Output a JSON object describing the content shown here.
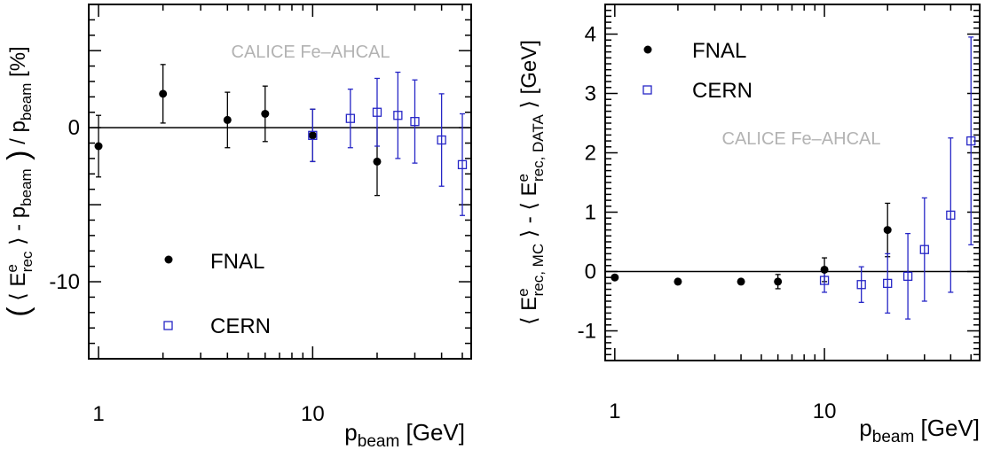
{
  "colors": {
    "fnal": "#000000",
    "cern": "#2626c6",
    "watermark": "#b3b3b3",
    "axis": "#000000"
  },
  "chart_data": [
    {
      "type": "scatter",
      "xscale": "log",
      "xlim": [
        0.9,
        55
      ],
      "ylim": [
        -15,
        8
      ],
      "ylabel": "( ⟨ E_rec^e ⟩ - p_beam ) / p_beam [%]",
      "xlabel": "p_beam [GeV]",
      "xticks": [
        {
          "v": 1,
          "label": "1"
        },
        {
          "v": 10,
          "label": "10"
        }
      ],
      "yticks": [
        {
          "v": 0,
          "label": "0"
        },
        {
          "v": -10,
          "label": "-10"
        }
      ],
      "reference_line": 0,
      "watermark": "CALICE Fe–AHCAL",
      "legend": [
        {
          "label": "FNAL",
          "marker": "filled-circle"
        },
        {
          "label": "CERN",
          "marker": "open-square"
        }
      ],
      "series": [
        {
          "name": "FNAL",
          "points": [
            {
              "x": 1,
              "y": -1.2,
              "err": 2.0
            },
            {
              "x": 2,
              "y": 2.2,
              "err": 1.9
            },
            {
              "x": 4,
              "y": 0.5,
              "err": 1.8
            },
            {
              "x": 6,
              "y": 0.9,
              "err": 1.8
            },
            {
              "x": 10,
              "y": -0.5,
              "err": 1.7
            },
            {
              "x": 20,
              "y": -2.2,
              "err": 2.2
            }
          ]
        },
        {
          "name": "CERN",
          "points": [
            {
              "x": 10,
              "y": -0.5,
              "err": 1.7
            },
            {
              "x": 15,
              "y": 0.6,
              "err": 1.9
            },
            {
              "x": 20,
              "y": 1.0,
              "err": 2.2
            },
            {
              "x": 25,
              "y": 0.8,
              "err": 2.8
            },
            {
              "x": 30,
              "y": 0.4,
              "err": 2.7
            },
            {
              "x": 40,
              "y": -0.8,
              "err": 3.0
            },
            {
              "x": 50,
              "y": -2.4,
              "err": 3.3
            }
          ]
        }
      ]
    },
    {
      "type": "scatter",
      "xscale": "log",
      "xlim": [
        0.9,
        55
      ],
      "ylim": [
        -1.5,
        4.5
      ],
      "ylabel": "⟨ E_rec,MC^e ⟩ - ⟨ E_rec,DATA^e ⟩ [GeV]",
      "xlabel": "p_beam [GeV]",
      "xticks": [
        {
          "v": 1,
          "label": "1"
        },
        {
          "v": 10,
          "label": "10"
        }
      ],
      "yticks": [
        {
          "v": -1,
          "label": "-1"
        },
        {
          "v": 0,
          "label": "0"
        },
        {
          "v": 1,
          "label": "1"
        },
        {
          "v": 2,
          "label": "2"
        },
        {
          "v": 3,
          "label": "3"
        },
        {
          "v": 4,
          "label": "4"
        }
      ],
      "reference_line": 0,
      "watermark": "CALICE Fe–AHCAL",
      "legend": [
        {
          "label": "FNAL",
          "marker": "filled-circle"
        },
        {
          "label": "CERN",
          "marker": "open-square"
        }
      ],
      "series": [
        {
          "name": "FNAL",
          "points": [
            {
              "x": 1,
              "y": -0.1,
              "err": 0.03
            },
            {
              "x": 2,
              "y": -0.17,
              "err": 0.03
            },
            {
              "x": 4,
              "y": -0.17,
              "err": 0.03
            },
            {
              "x": 6,
              "y": -0.17,
              "err": 0.12
            },
            {
              "x": 10,
              "y": 0.03,
              "err": 0.2
            },
            {
              "x": 20,
              "y": 0.7,
              "err": 0.45
            }
          ]
        },
        {
          "name": "CERN",
          "points": [
            {
              "x": 10,
              "y": -0.15,
              "err": 0.2
            },
            {
              "x": 15,
              "y": -0.22,
              "err": 0.3
            },
            {
              "x": 20,
              "y": -0.2,
              "err": 0.5
            },
            {
              "x": 25,
              "y": -0.08,
              "err": 0.72
            },
            {
              "x": 30,
              "y": 0.37,
              "err": 0.87
            },
            {
              "x": 40,
              "y": 0.95,
              "err": 1.3
            },
            {
              "x": 50,
              "y": 2.2,
              "err": 1.75
            }
          ]
        }
      ]
    }
  ]
}
